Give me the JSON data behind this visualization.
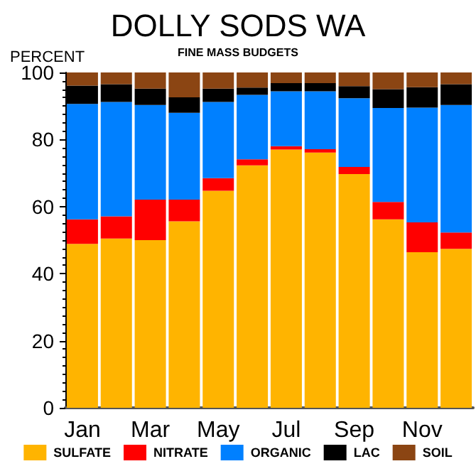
{
  "chart_data": {
    "type": "bar",
    "title": "DOLLY SODS WA",
    "subtitle": "FINE MASS BUDGETS",
    "ylabel": "PERCENT",
    "stacked": true,
    "categories": [
      "Jan",
      null,
      "Mar",
      null,
      "May",
      null,
      "Jul",
      null,
      "Sep",
      null,
      "Nov",
      null
    ],
    "series": [
      {
        "name": "SULFATE",
        "color": "#ffb400",
        "values": [
          48.9,
          50.5,
          50,
          55.6,
          64.7,
          72.3,
          77,
          76.1,
          69.7,
          56.2,
          46.4,
          47.4
        ]
      },
      {
        "name": "NITRATE",
        "color": "#ff0000",
        "values": [
          7.3,
          6.6,
          12.1,
          6.5,
          3.8,
          1.8,
          1,
          1,
          2.1,
          5.2,
          8.9,
          4.9
        ]
      },
      {
        "name": "ORGANIC",
        "color": "#0080ff",
        "values": [
          34.4,
          34.1,
          28.2,
          25.9,
          22.7,
          19.2,
          16.4,
          17.3,
          20.5,
          28,
          34.2,
          38
        ]
      },
      {
        "name": "LAC",
        "color": "#000000",
        "values": [
          5.5,
          5.3,
          4.9,
          4.6,
          4,
          2.2,
          2.4,
          2.4,
          3.6,
          5.6,
          6.1,
          6.2
        ]
      },
      {
        "name": "SOIL",
        "color": "#8b4513",
        "values": [
          3.9,
          3.5,
          4.8,
          7.4,
          4.8,
          4.5,
          3.2,
          3.2,
          4.1,
          5,
          4.4,
          3.5
        ]
      }
    ],
    "ylim": [
      0,
      100
    ],
    "yticks": [
      0,
      20,
      40,
      60,
      80,
      100
    ],
    "grid": false,
    "legend": "bottom"
  }
}
